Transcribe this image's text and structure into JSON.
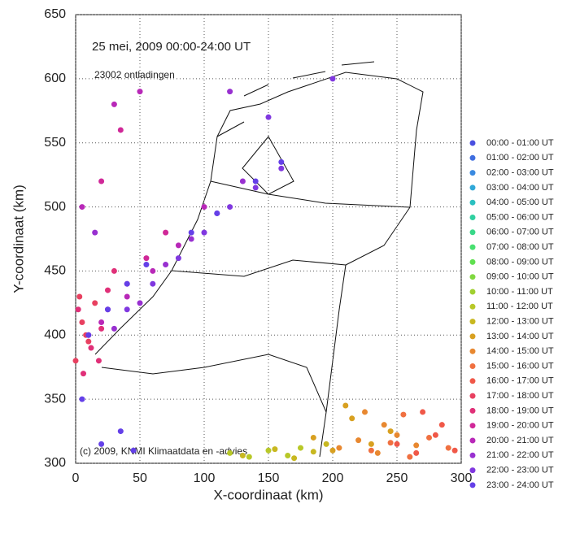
{
  "chart_data": {
    "type": "scatter",
    "title": "25 mei, 2009    00:00-24:00 UT",
    "annotations": [
      "23002 ontladingen",
      "(c) 2009, KNMI Klimaatdata en -advies"
    ],
    "x_label": "X-coordinaat (km)",
    "y_label": "Y-coordinaat (km)",
    "xlim": [
      0,
      300
    ],
    "ylim": [
      300,
      650
    ],
    "xticks": [
      0,
      50,
      100,
      150,
      200,
      250,
      300
    ],
    "yticks": [
      300,
      350,
      400,
      450,
      500,
      550,
      600,
      650
    ],
    "grid": true,
    "legend": "right",
    "series": [
      {
        "name": "00:00 - 01:00 UT",
        "color": "#4a50e0",
        "x": [],
        "values": []
      },
      {
        "name": "01:00 - 02:00 UT",
        "color": "#3f6ee0",
        "x": [],
        "values": []
      },
      {
        "name": "02:00 - 03:00 UT",
        "color": "#3a8ae0",
        "x": [],
        "values": []
      },
      {
        "name": "03:00 - 04:00 UT",
        "color": "#30a8d8",
        "x": [],
        "values": []
      },
      {
        "name": "04:00 - 05:00 UT",
        "color": "#2ac0c0",
        "x": [],
        "values": []
      },
      {
        "name": "05:00 - 06:00 UT",
        "color": "#30d0a0",
        "x": [],
        "values": []
      },
      {
        "name": "06:00 - 07:00 UT",
        "color": "#38d888",
        "x": [],
        "values": []
      },
      {
        "name": "07:00 - 08:00 UT",
        "color": "#48e070",
        "x": [],
        "values": []
      },
      {
        "name": "08:00 - 09:00 UT",
        "color": "#60e050",
        "x": [],
        "values": []
      },
      {
        "name": "09:00 - 10:00 UT",
        "color": "#80d840",
        "x": [],
        "values": []
      },
      {
        "name": "10:00 - 11:00 UT",
        "color": "#a0d030",
        "x": [],
        "values": []
      },
      {
        "name": "11:00 - 12:00 UT",
        "color": "#b8c828",
        "x": [
          120,
          135,
          150,
          165,
          175
        ],
        "values": [
          308,
          305,
          310,
          306,
          312
        ]
      },
      {
        "name": "12:00 - 13:00 UT",
        "color": "#c8b820",
        "x": [
          130,
          155,
          170,
          185,
          195
        ],
        "values": [
          306,
          311,
          304,
          309,
          315
        ]
      },
      {
        "name": "13:00 - 14:00 UT",
        "color": "#d8a020",
        "x": [
          185,
          200,
          215,
          230,
          245,
          210
        ],
        "values": [
          320,
          310,
          335,
          315,
          325,
          345
        ]
      },
      {
        "name": "14:00 - 15:00 UT",
        "color": "#e88830",
        "x": [
          205,
          220,
          235,
          250,
          265,
          225,
          240
        ],
        "values": [
          312,
          318,
          308,
          322,
          314,
          340,
          330
        ]
      },
      {
        "name": "15:00 - 16:00 UT",
        "color": "#f07040",
        "x": [
          230,
          245,
          260,
          275,
          290,
          255
        ],
        "values": [
          310,
          316,
          305,
          320,
          312,
          338
        ]
      },
      {
        "name": "16:00 - 17:00 UT",
        "color": "#f05848",
        "x": [
          250,
          265,
          280,
          295,
          270,
          285
        ],
        "values": [
          315,
          308,
          322,
          310,
          340,
          330
        ]
      },
      {
        "name": "17:00 - 18:00 UT",
        "color": "#e84060",
        "x": [
          0,
          5,
          10,
          15,
          3,
          8
        ],
        "values": [
          380,
          410,
          395,
          425,
          430,
          400
        ]
      },
      {
        "name": "18:00 - 19:00 UT",
        "color": "#e03078",
        "x": [
          2,
          12,
          20,
          25,
          6,
          18,
          30
        ],
        "values": [
          420,
          390,
          405,
          435,
          370,
          380,
          450
        ]
      },
      {
        "name": "19:00 - 20:00 UT",
        "color": "#d02898",
        "x": [
          10,
          25,
          40,
          55,
          70,
          20,
          35
        ],
        "values": [
          400,
          420,
          440,
          460,
          480,
          520,
          560
        ]
      },
      {
        "name": "20:00 - 21:00 UT",
        "color": "#b828b8",
        "x": [
          20,
          40,
          60,
          80,
          100,
          30,
          50,
          5
        ],
        "values": [
          410,
          430,
          450,
          470,
          500,
          580,
          590,
          500
        ]
      },
      {
        "name": "21:00 - 22:00 UT",
        "color": "#9830d0",
        "x": [
          30,
          50,
          70,
          90,
          110,
          130,
          120,
          15
        ],
        "values": [
          405,
          425,
          455,
          475,
          495,
          520,
          590,
          480
        ]
      },
      {
        "name": "22:00 - 23:00 UT",
        "color": "#8038e0",
        "x": [
          40,
          60,
          80,
          100,
          120,
          140,
          160,
          150,
          200
        ],
        "values": [
          420,
          440,
          460,
          480,
          500,
          515,
          530,
          570,
          600
        ]
      },
      {
        "name": "23:00 - 24:00 UT",
        "color": "#6440e8",
        "x": [
          10,
          25,
          40,
          55,
          90,
          110,
          140,
          160,
          20,
          35,
          5,
          45
        ],
        "values": [
          400,
          420,
          440,
          455,
          480,
          495,
          520,
          535,
          315,
          325,
          350,
          310
        ]
      }
    ]
  }
}
